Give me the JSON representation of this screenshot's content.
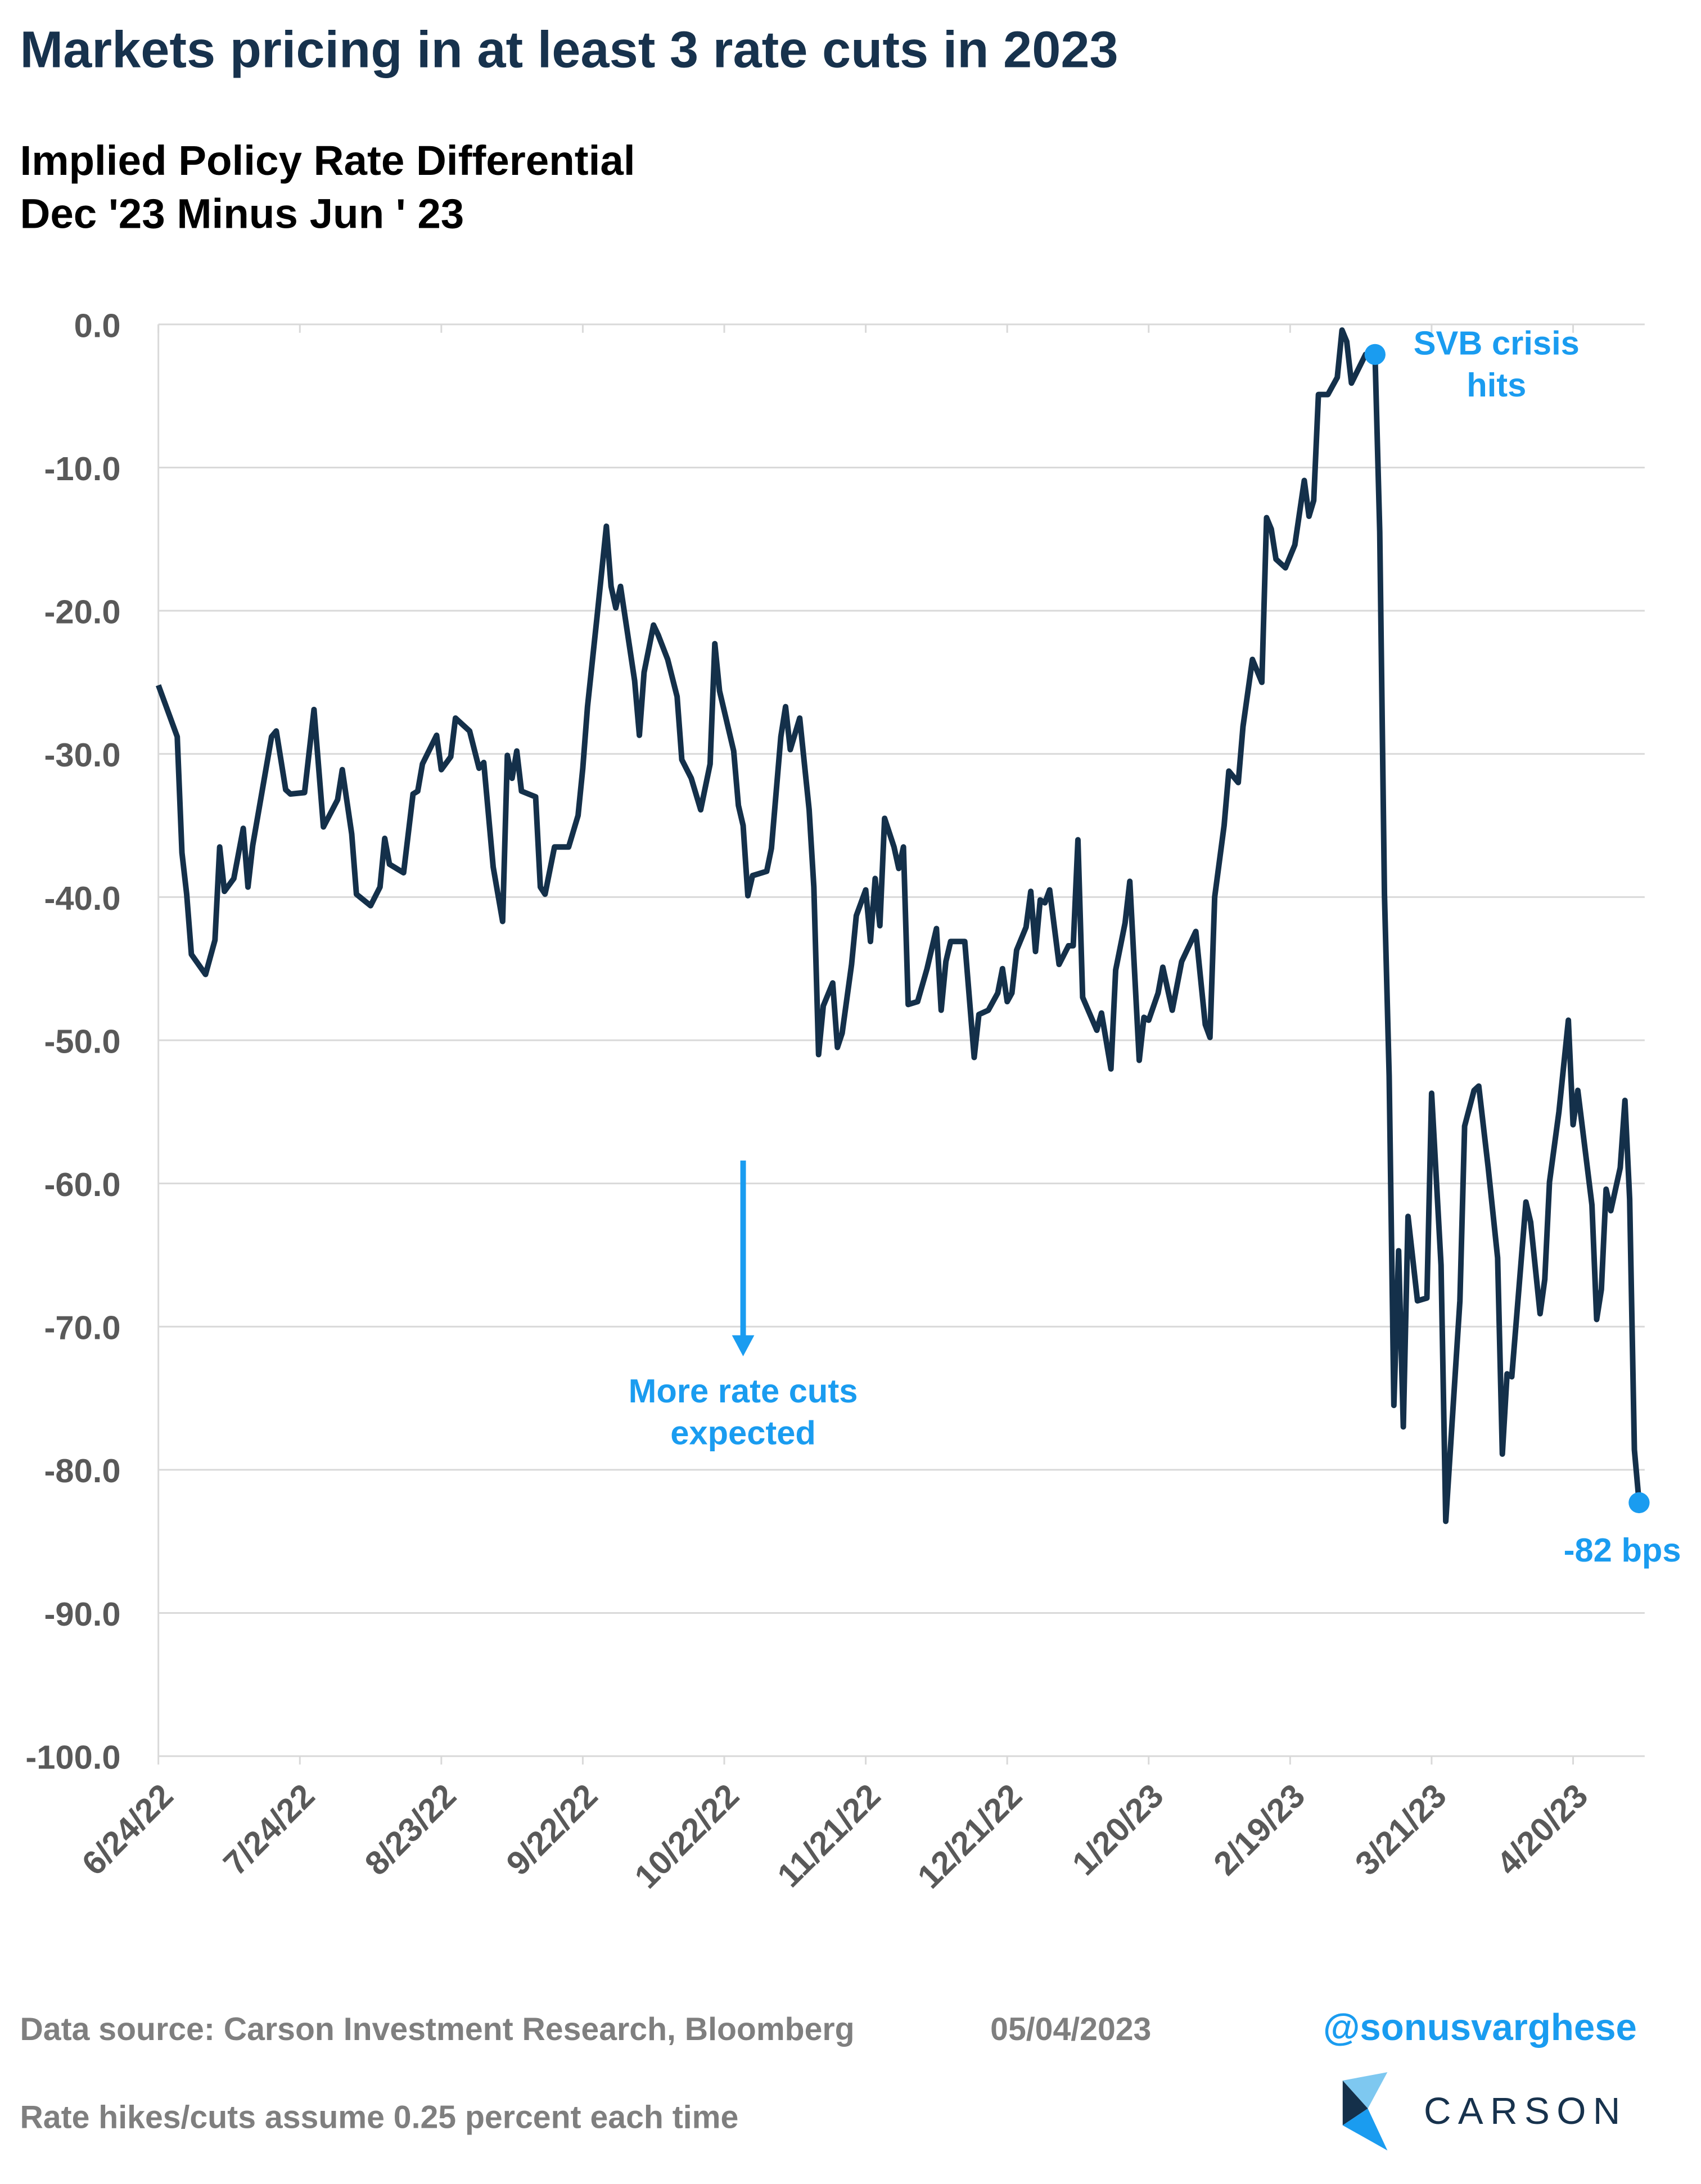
{
  "chart_data": {
    "type": "line",
    "title": "Markets pricing in at least 3 rate cuts in 2023",
    "subtitle": [
      "Implied Policy Rate Differential",
      "Dec '23 Minus Jun ' 23"
    ],
    "x": [
      "6/24/22",
      "6/28/22",
      "6/29/22",
      "6/30/22",
      "7/1/22",
      "7/4/22",
      "7/6/22",
      "7/7/22",
      "7/8/22",
      "7/10/22",
      "7/12/22",
      "7/13/22",
      "7/14/22",
      "7/18/22",
      "7/19/22",
      "7/21/22",
      "7/22/22",
      "7/25/22",
      "7/27/22",
      "7/29/22",
      "8/1/22",
      "8/2/22",
      "8/4/22",
      "8/5/22",
      "8/8/22",
      "8/10/22",
      "8/11/22",
      "8/12/22",
      "8/15/22",
      "8/17/22",
      "8/18/22",
      "8/19/22",
      "8/22/22",
      "8/23/22",
      "8/25/22",
      "8/26/22",
      "8/29/22",
      "8/31/22",
      "9/1/22",
      "9/3/22",
      "9/5/22",
      "9/6/22",
      "9/7/22",
      "9/8/22",
      "9/9/22",
      "9/12/22",
      "9/13/22",
      "9/14/22",
      "9/16/22",
      "9/19/22",
      "9/21/22",
      "9/22/22",
      "9/23/22",
      "9/25/22",
      "9/27/22",
      "9/28/22",
      "9/29/22",
      "9/30/22",
      "10/3/22",
      "10/4/22",
      "10/5/22",
      "10/7/22",
      "10/8/22",
      "10/10/22",
      "10/12/22",
      "10/13/22",
      "10/15/22",
      "10/17/22",
      "10/19/22",
      "10/20/22",
      "10/21/22",
      "10/24/22",
      "10/25/22",
      "10/26/22",
      "10/27/22",
      "10/28/22",
      "10/31/22",
      "11/1/22",
      "11/3/22",
      "11/4/22",
      "11/5/22",
      "11/7/22",
      "11/9/22",
      "11/10/22",
      "11/11/22",
      "11/12/22",
      "11/14/22",
      "11/15/22",
      "11/16/22",
      "11/18/22",
      "11/19/22",
      "11/21/22",
      "11/22/22",
      "11/23/22",
      "11/24/22",
      "11/25/22",
      "11/27/22",
      "11/28/22",
      "11/29/22",
      "11/30/22",
      "12/2/22",
      "12/4/22",
      "12/6/22",
      "12/7/22",
      "12/8/22",
      "12/9/22",
      "12/12/22",
      "12/14/22",
      "12/15/22",
      "12/17/22",
      "12/19/22",
      "12/20/22",
      "12/21/22",
      "12/22/22",
      "12/23/22",
      "12/25/22",
      "12/26/22",
      "12/27/22",
      "12/28/22",
      "12/29/22",
      "12/30/22",
      "1/1/23",
      "1/3/23",
      "1/4/23",
      "1/5/23",
      "1/6/23",
      "1/9/23",
      "1/10/23",
      "1/12/23",
      "1/13/23",
      "1/15/23",
      "1/16/23",
      "1/18/23",
      "1/19/23",
      "1/20/23",
      "1/22/23",
      "1/23/23",
      "1/25/23",
      "1/27/23",
      "1/30/23",
      "2/1/23",
      "2/2/23",
      "2/3/23",
      "2/5/23",
      "2/6/23",
      "2/8/23",
      "2/9/23",
      "2/11/23",
      "2/13/23",
      "2/14/23",
      "2/15/23",
      "2/16/23",
      "2/18/23",
      "2/20/23",
      "2/22/23",
      "2/23/23",
      "2/24/23",
      "2/25/23",
      "2/27/23",
      "3/1/23",
      "3/2/23",
      "3/3/23",
      "3/4/23",
      "3/7/23",
      "3/9/23",
      "3/10/23",
      "3/11/23",
      "3/12/23",
      "3/13/23",
      "3/14/23",
      "3/15/23",
      "3/16/23",
      "3/18/23",
      "3/20/23",
      "3/21/23",
      "3/23/23",
      "3/24/23",
      "3/27/23",
      "3/28/23",
      "3/30/23",
      "3/31/23",
      "4/2/23",
      "4/4/23",
      "4/5/23",
      "4/6/23",
      "4/7/23",
      "4/10/23",
      "4/11/23",
      "4/13/23",
      "4/14/23",
      "4/15/23",
      "4/17/23",
      "4/19/23",
      "4/20/23",
      "4/21/23",
      "4/24/23",
      "4/25/23",
      "4/26/23",
      "4/27/23",
      "4/28/23",
      "4/30/23",
      "5/1/23",
      "5/2/23",
      "5/3/23",
      "5/4/23"
    ],
    "series": [
      {
        "name": "Implied Policy Rate Differential",
        "color": "#14304a",
        "values": [
          -25.2,
          -28.8,
          -36.9,
          -39.8,
          -44.0,
          -45.4,
          -43.0,
          -36.5,
          -39.6,
          -38.7,
          -35.2,
          -39.3,
          -36.4,
          -28.8,
          -28.4,
          -32.5,
          -32.8,
          -32.7,
          -26.9,
          -35.1,
          -33.2,
          -31.1,
          -35.6,
          -39.8,
          -40.6,
          -39.3,
          -35.9,
          -37.7,
          -38.3,
          -32.8,
          -32.6,
          -30.7,
          -28.7,
          -31.1,
          -30.2,
          -27.5,
          -28.4,
          -31.0,
          -30.6,
          -37.9,
          -41.7,
          -30.1,
          -31.7,
          -29.8,
          -32.6,
          -33.0,
          -39.3,
          -39.8,
          -36.5,
          -36.5,
          -34.3,
          -31.0,
          -26.7,
          -20.5,
          -14.1,
          -18.3,
          -19.8,
          -18.3,
          -24.9,
          -28.7,
          -24.3,
          -21.0,
          -21.7,
          -23.4,
          -26.0,
          -30.4,
          -31.7,
          -33.9,
          -30.7,
          -22.3,
          -25.6,
          -29.8,
          -33.6,
          -35.0,
          -39.9,
          -38.5,
          -38.2,
          -36.6,
          -28.8,
          -26.7,
          -29.7,
          -27.5,
          -33.9,
          -39.3,
          -51.0,
          -47.6,
          -46.0,
          -50.5,
          -49.5,
          -44.7,
          -41.3,
          -39.5,
          -43.1,
          -38.7,
          -42.0,
          -34.5,
          -36.5,
          -38.0,
          -36.5,
          -47.5,
          -47.3,
          -45.0,
          -42.2,
          -47.9,
          -44.5,
          -43.1,
          -43.1,
          -51.2,
          -48.2,
          -47.9,
          -46.7,
          -45.0,
          -47.3,
          -46.7,
          -43.7,
          -42.1,
          -39.6,
          -43.8,
          -40.2,
          -40.4,
          -39.5,
          -44.7,
          -43.4,
          -43.4,
          -36.0,
          -47.0,
          -49.3,
          -48.1,
          -52.0,
          -45.1,
          -41.8,
          -38.9,
          -51.4,
          -48.4,
          -48.6,
          -46.7,
          -44.9,
          -47.9,
          -44.5,
          -42.4,
          -48.9,
          -49.8,
          -40.0,
          -35.0,
          -31.2,
          -32.0,
          -28.1,
          -23.4,
          -25.0,
          -13.5,
          -14.3,
          -16.4,
          -17.0,
          -15.4,
          -10.9,
          -13.4,
          -12.3,
          -4.9,
          -4.9,
          -3.7,
          -0.4,
          -1.2,
          -4.1,
          -2.1,
          -2.1,
          -14.5,
          -39.8,
          -52.5,
          -75.5,
          -64.7,
          -77.0,
          -62.3,
          -68.2,
          -68.0,
          -53.7,
          -65.7,
          -83.6,
          -68.2,
          -56.0,
          -53.5,
          -53.2,
          -58.9,
          -65.2,
          -78.9,
          -73.3,
          -73.5,
          -61.3,
          -62.7,
          -69.1,
          -66.7,
          -59.9,
          -55.0,
          -48.6,
          -55.9,
          -53.5,
          -61.5,
          -69.5,
          -67.4,
          -60.4,
          -61.9,
          -58.9,
          -54.2,
          -61.1,
          -78.6,
          -82.3
        ]
      }
    ],
    "xlim": [
      "6/24/22",
      "5/4/23"
    ],
    "xticks": [
      "6/24/22",
      "7/24/22",
      "8/23/22",
      "9/22/22",
      "10/22/22",
      "11/21/22",
      "12/21/22",
      "1/20/23",
      "2/19/23",
      "3/21/23",
      "4/20/23"
    ],
    "ylim": [
      -100,
      0
    ],
    "yticks": [
      {
        "value": 0,
        "label": "0.0"
      },
      {
        "value": -10,
        "label": "-10.0"
      },
      {
        "value": -20,
        "label": "-20.0"
      },
      {
        "value": -30,
        "label": "-30.0"
      },
      {
        "value": -40,
        "label": "-40.0"
      },
      {
        "value": -50,
        "label": "-50.0"
      },
      {
        "value": -60,
        "label": "-60.0"
      },
      {
        "value": -70,
        "label": "-70.0"
      },
      {
        "value": -80,
        "label": "-80.0"
      },
      {
        "value": -90,
        "label": "-90.0"
      },
      {
        "value": -100,
        "label": "-100.0"
      }
    ],
    "grid": true,
    "annotations": [
      {
        "lines": [
          "SVB crisis",
          "hits"
        ],
        "x": "3/9/23",
        "color": "#1a9cf0"
      },
      {
        "lines": [
          "-82 bps"
        ],
        "x": "5/4/23",
        "color": "#1a9cf0"
      },
      {
        "lines": [
          "More rate cuts",
          "expected"
        ],
        "x": "10/26/22",
        "color": "#1a9cf0"
      }
    ]
  },
  "footer": {
    "source": "Data source: Carson Investment Research, Bloomberg",
    "date": "05/04/2023",
    "handle": "@sonusvarghese",
    "note": "Rate hikes/cuts assume 0.25 percent each time",
    "logo": "CARSON"
  }
}
